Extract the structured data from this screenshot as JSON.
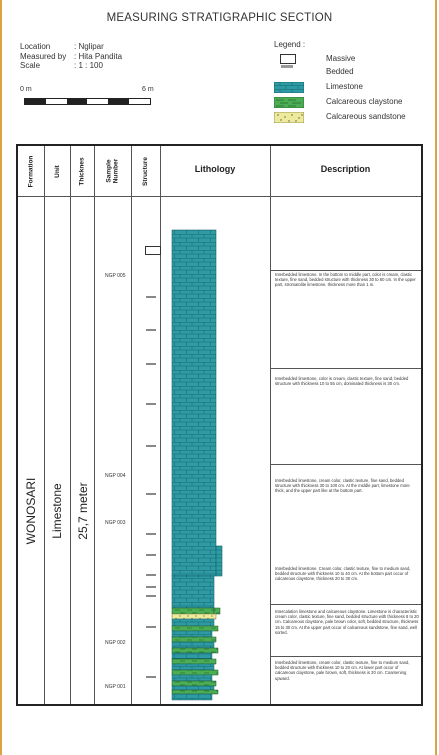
{
  "title": "MEASURING STRATIGRAPHIC SECTION",
  "info": {
    "location_label": "Location",
    "location_value": ": Nglipar",
    "measured_label": "Measured by",
    "measured_value": ": Hita Pandita",
    "scale_label": "Scale",
    "scale_value": ": 1 : 100"
  },
  "scale_bar": {
    "start": "0 m",
    "end": "6 m"
  },
  "legend": {
    "heading": "Legend :",
    "items": [
      {
        "label": "Massive",
        "swatch": "massive"
      },
      {
        "label": "Bedded",
        "swatch": "bedded"
      },
      {
        "label": "Limestone",
        "swatch": "limestone",
        "color": "#2e9aa4"
      },
      {
        "label": "Calcareous claystone",
        "swatch": "claystone",
        "color": "#4cae54"
      },
      {
        "label": "Calcareous sandstone",
        "swatch": "sandstone",
        "color": "#eeea9c"
      }
    ]
  },
  "columns": {
    "formation": "Formation",
    "unit": "Unit",
    "thickness": "Thicknes",
    "sample": "Sample Number",
    "structure": "Structure",
    "lithology": "Lithology",
    "description": "Description"
  },
  "section": {
    "formation": "WONOSARI",
    "unit": "Limestone",
    "thickness": "25,7 meter"
  },
  "samples": [
    "NGP 005",
    "NGP 004",
    "NGP 003",
    "NGP 002",
    "NGP 001"
  ],
  "descriptions": [
    "Interbedded limestone. In the bottom to middle part, color is cream, clastic texture, fine sand, bedded structure with thickness 30 to 60 cm. In the upper part, stromatolite limestone, thickness more than 1 m.",
    "Interbedded limestone, color is cream, clastic texture, fine sand, bedded structure with thickness 10 to 55 cm, dominated thickness is 30 cm.",
    "Interbedded limestone, cream color, clastic texture, fine sand, bedded structure with thickness 30 to 100 cm. At the middle part, limestone more thick, and the upper part like at the bottom part.",
    "Interbedded limestone. Cream color, clastic texture, fine to medium sand, bedded structure with thickness 10 to 40 cm. At the bottom part occur of calcareous claystone, thickness 20 to 30 cm.",
    "Intercalation limestone and calcareous claystone. Limestone is characteristic cream color, clastic texture, fine sand, bedded structure with thickness 8 to 20 cm. Calcareous claystone, pale brown color, soft, bedded structure, thickness 15 to 30 cm. At the upper part occur of calcareous sandstone, fine sand, well sorted.",
    "Interbedded limestone, cream color, clastic texture, fine to medium sand, bedded structure with thickness 10 to 20 cm. At lower part occur of calcareous claystone, pale brown, soft, thickness is 20 cm. Coarsening upward."
  ],
  "colors": {
    "limestone": "#2e9aa4",
    "brick_line": "#16666e",
    "claystone": "#4cae54",
    "sandstone": "#eeea9c"
  }
}
